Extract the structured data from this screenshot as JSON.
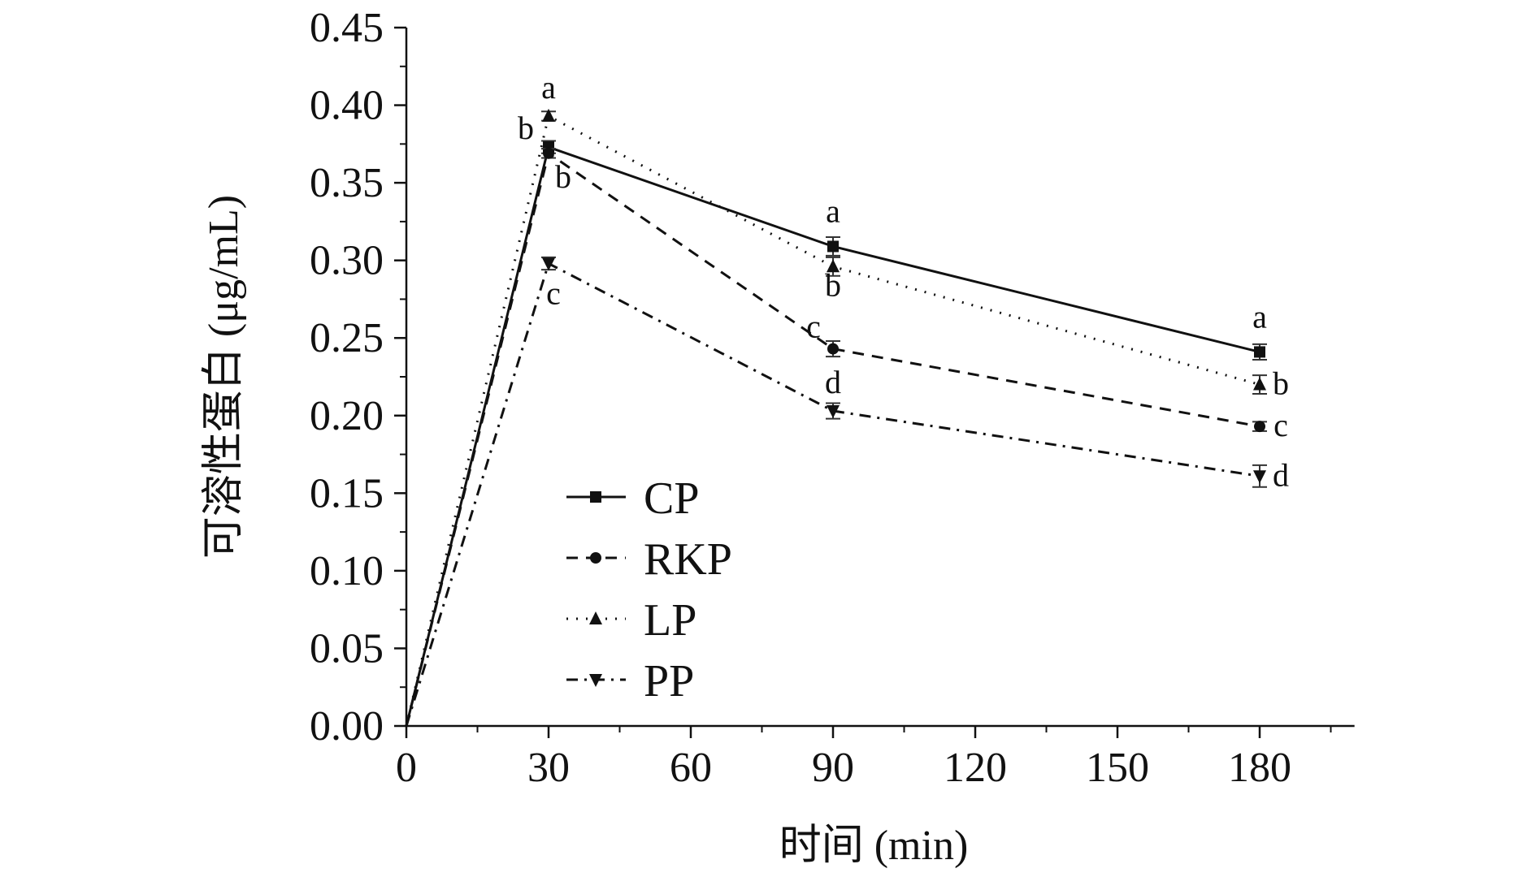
{
  "chart_data": {
    "type": "line",
    "title": "",
    "xlabel": "时间 (min)",
    "ylabel": "可溶性蛋白 (μg/mL)",
    "x": [
      0,
      30,
      90,
      180
    ],
    "xlim": [
      0,
      200
    ],
    "ylim": [
      0,
      0.45
    ],
    "xticks": [
      "0",
      "30",
      "60",
      "90",
      "120",
      "150",
      "180"
    ],
    "xtick_values": [
      0,
      30,
      60,
      90,
      120,
      150,
      180
    ],
    "yticks": [
      "0.00",
      "0.05",
      "0.10",
      "0.15",
      "0.20",
      "0.25",
      "0.30",
      "0.35",
      "0.40",
      "0.45"
    ],
    "ytick_values": [
      0,
      0.05,
      0.1,
      0.15,
      0.2,
      0.25,
      0.3,
      0.35,
      0.4,
      0.45
    ],
    "grid": false,
    "legend_position": "bottom-left",
    "series": [
      {
        "name": "CP",
        "marker": "square",
        "dash": "solid",
        "values": [
          0,
          0.373,
          0.309,
          0.241
        ],
        "errors": [
          0,
          0.004,
          0.006,
          0.005
        ],
        "letters": [
          "",
          "b",
          "a",
          "a"
        ]
      },
      {
        "name": "RKP",
        "marker": "circle",
        "dash": "dashed",
        "values": [
          0,
          0.369,
          0.243,
          0.193
        ],
        "errors": [
          0,
          0.003,
          0.005,
          0.003
        ],
        "letters": [
          "",
          "b",
          "c",
          "c"
        ]
      },
      {
        "name": "LP",
        "marker": "triangle-up",
        "dash": "dotted",
        "values": [
          0,
          0.393,
          0.296,
          0.22
        ],
        "errors": [
          0,
          0.003,
          0.006,
          0.006
        ],
        "letters": [
          "",
          "a",
          "b",
          "b"
        ]
      },
      {
        "name": "PP",
        "marker": "triangle-down",
        "dash": "dashdot",
        "values": [
          0,
          0.298,
          0.203,
          0.161
        ],
        "errors": [
          0,
          0.004,
          0.005,
          0.007
        ],
        "letters": [
          "",
          "c",
          "d",
          "d"
        ]
      }
    ]
  }
}
